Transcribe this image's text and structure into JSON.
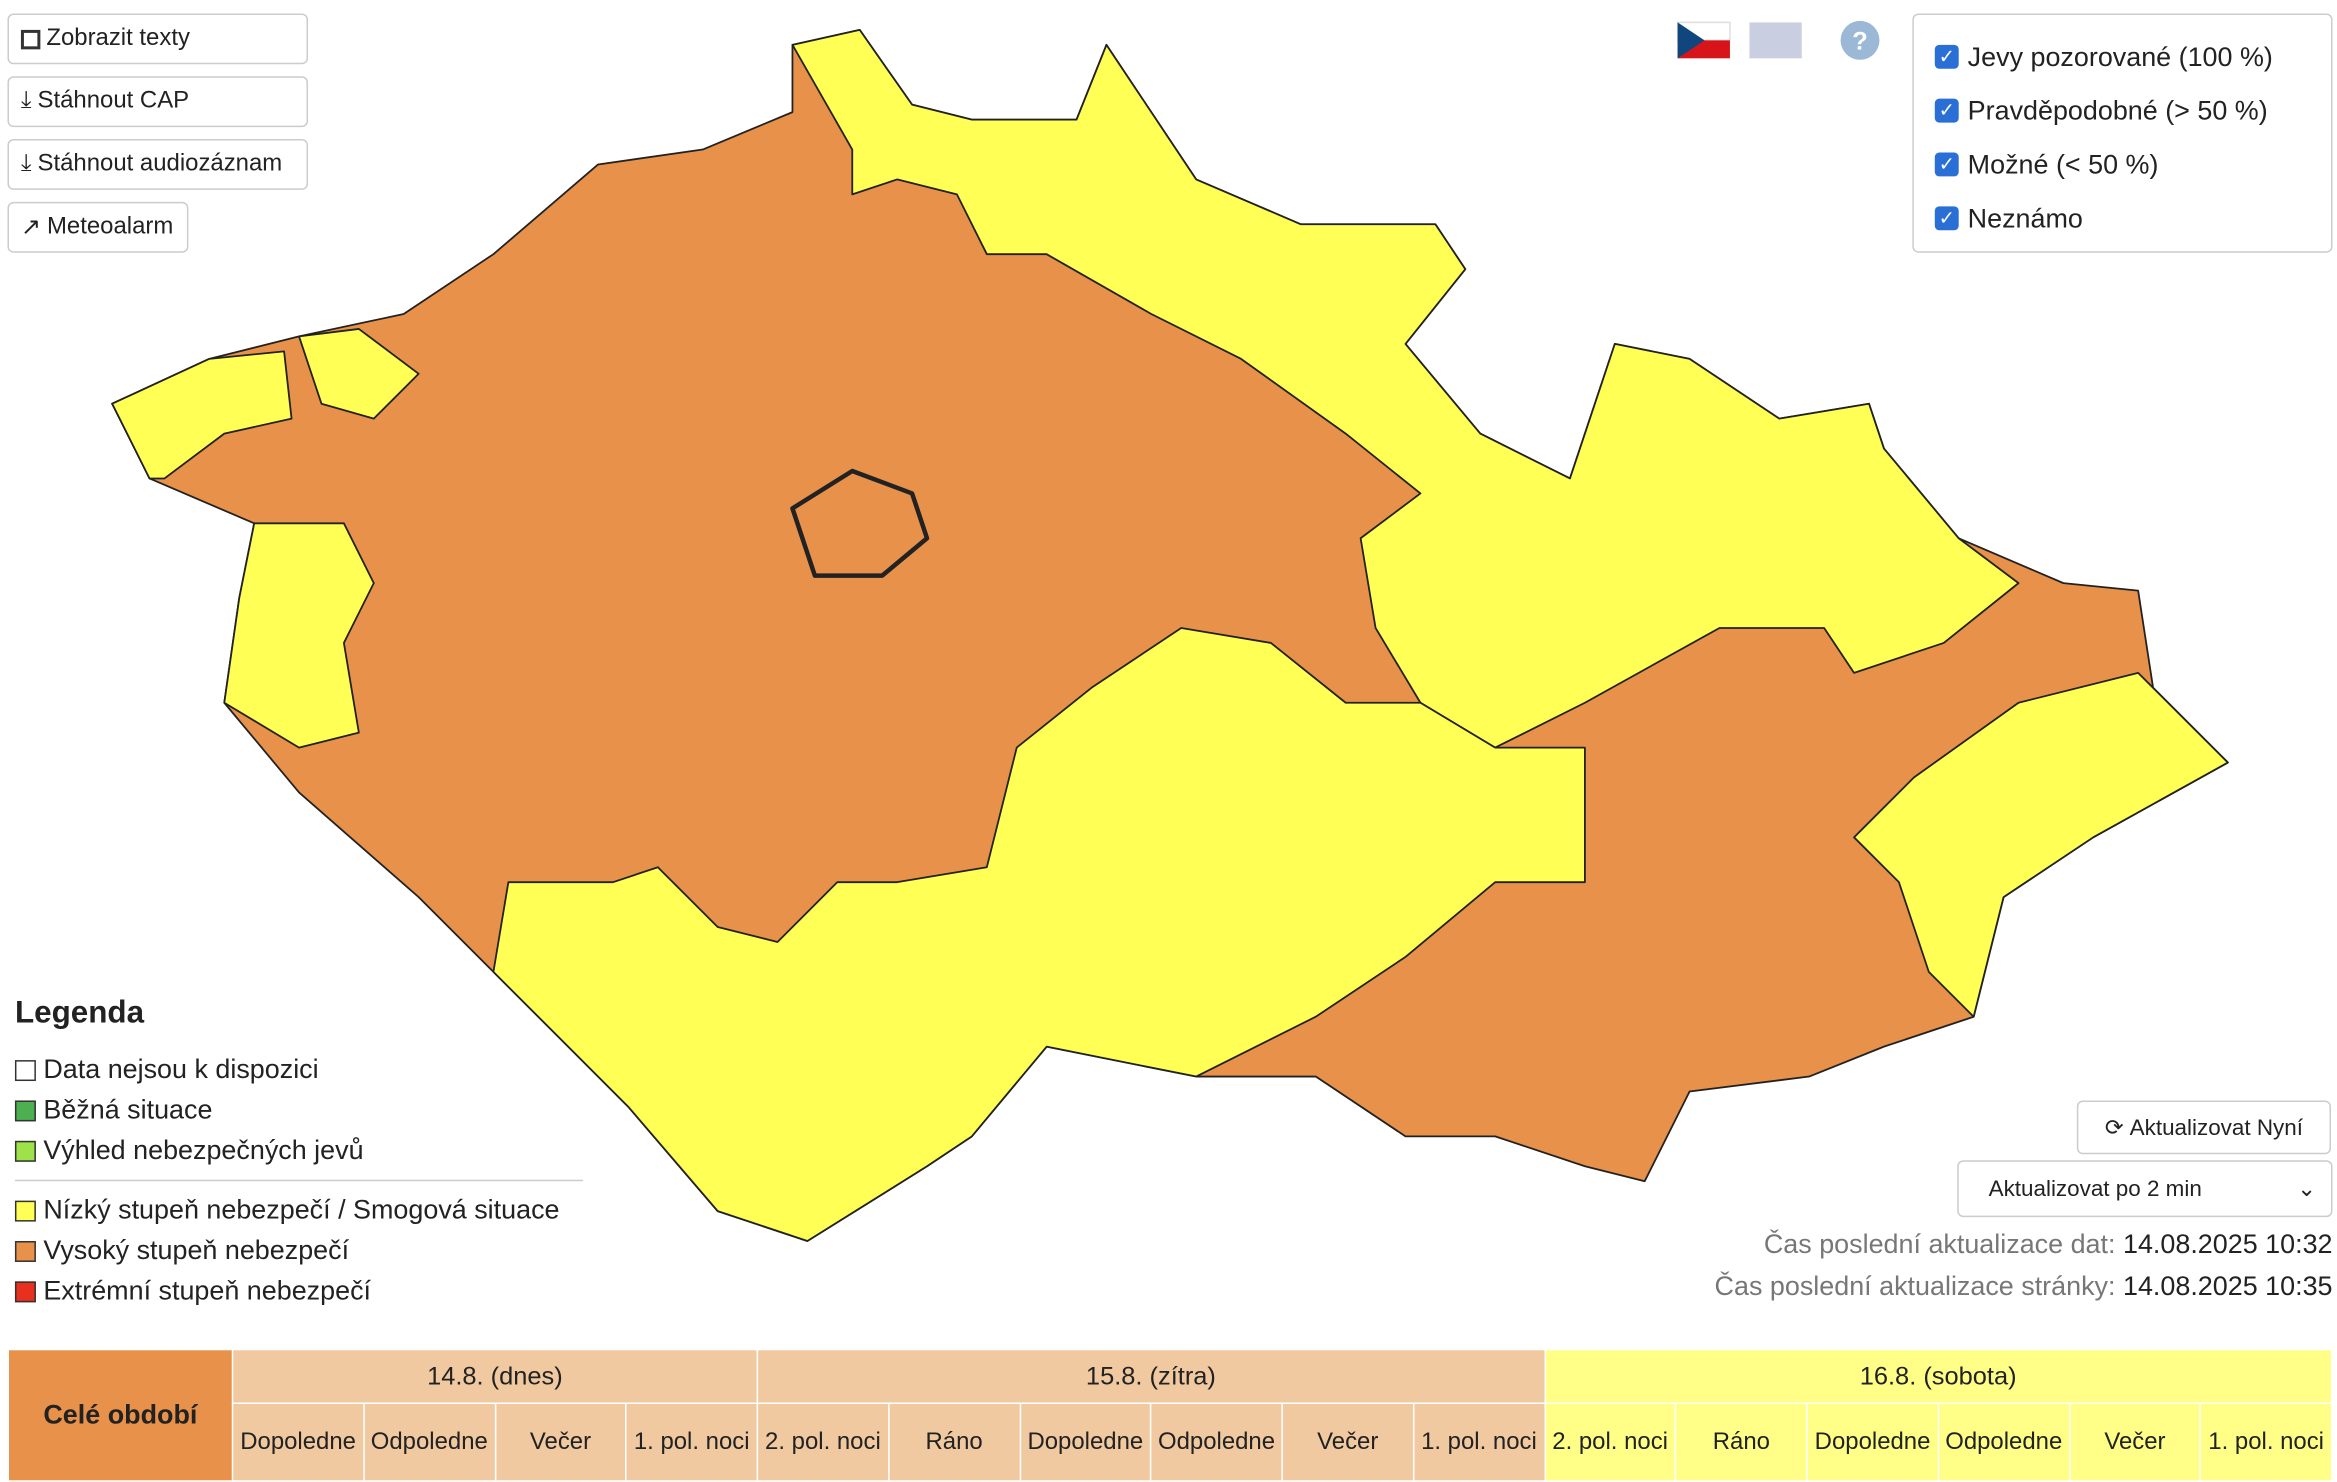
{
  "buttons": [
    "Zobrazit texty",
    "Stáhnout CAP",
    "Stáhnout audiozáznam",
    "Meteoalarm"
  ],
  "help": "?",
  "filters": [
    "Jevy pozorované (100 %)",
    "Pravděpodobné (> 50 %)",
    "Možné (< 50 %)",
    "Neznámo"
  ],
  "legend": {
    "title": "Legenda",
    "items": [
      {
        "label": "Data nejsou k dispozici",
        "color": "#ffffff"
      },
      {
        "label": "Běžná situace",
        "color": "#4cb050"
      },
      {
        "label": "Výhled nebezpečných jevů",
        "color": "#9ee24a"
      },
      {
        "label": "Nízký stupeň nebezpečí / Smogová situace",
        "color": "#ffff55"
      },
      {
        "label": "Vysoký stupeň nebezpečí",
        "color": "#e8914a"
      },
      {
        "label": "Extrémní stupeň nebezpečí",
        "color": "#e8301e"
      }
    ]
  },
  "refresh_button": "Aktualizovat Nyní",
  "interval_select": "Aktualizovat po 2 min",
  "updates": [
    {
      "label": "Čas poslední aktualizace dat:",
      "value": "14.08.2025 10:32"
    },
    {
      "label": "Čas poslední aktualizace stránky:",
      "value": "14.08.2025 10:35"
    }
  ],
  "table": {
    "period_label": "Celé období",
    "days": [
      {
        "label": "14.8. (dnes)",
        "slots": [
          "Dopoledne",
          "Odpoledne",
          "Večer",
          "1. pol. noci"
        ]
      },
      {
        "label": "15.8. (zítra)",
        "slots": [
          "2. pol. noci",
          "Ráno",
          "Dopoledne",
          "Odpoledne",
          "Večer",
          "1. pol. noci"
        ]
      },
      {
        "label": "16.8. (sobota)",
        "slots": [
          "2. pol. noci",
          "Ráno",
          "Dopoledne",
          "Odpoledne",
          "Večer",
          "1. pol. noci"
        ]
      }
    ]
  }
}
